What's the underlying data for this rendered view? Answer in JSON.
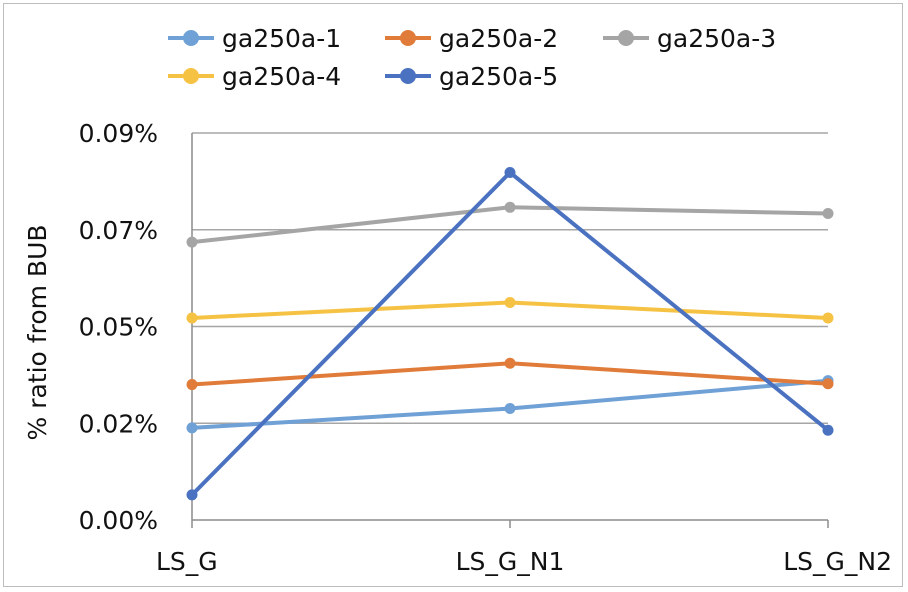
{
  "chart_data": {
    "type": "line",
    "ylabel": "% ratio from BUB",
    "xlabel": "",
    "categories": [
      "LS_G",
      "LS_G_N1",
      "LS_G_N2"
    ],
    "y_ticks": [
      "0.00%",
      "0.02%",
      "0.05%",
      "0.07%",
      "0.09%"
    ],
    "ylim": [
      0,
      0.1
    ],
    "grid": true,
    "legend_position": "top",
    "series": [
      {
        "name": "ga250a-1",
        "color": "#6fa1d6",
        "values": [
          0.0238,
          0.0288,
          0.036
        ]
      },
      {
        "name": "ga250a-2",
        "color": "#e07b39",
        "values": [
          0.035,
          0.0405,
          0.0352
        ]
      },
      {
        "name": "ga250a-3",
        "color": "#a5a5a5",
        "values": [
          0.0718,
          0.0808,
          0.0792
        ]
      },
      {
        "name": "ga250a-4",
        "color": "#f6c244",
        "values": [
          0.0522,
          0.0562,
          0.0522
        ]
      },
      {
        "name": "ga250a-5",
        "color": "#4a72c0",
        "values": [
          0.0065,
          0.0898,
          0.0232
        ]
      }
    ]
  }
}
